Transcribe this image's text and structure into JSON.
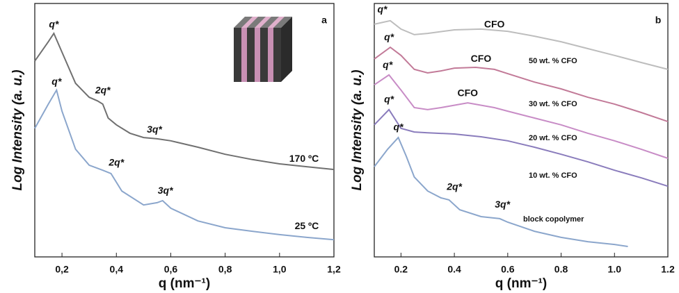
{
  "chart_data": [
    {
      "type": "line",
      "panel": "a",
      "ylabel": "Log Intensity (a. u.)",
      "xlabel": "q (nm⁻¹)",
      "xlim": [
        0.1,
        1.2
      ],
      "ylim": [
        0,
        100
      ],
      "xticks": [
        {
          "value": 0.2,
          "label": "0,2"
        },
        {
          "value": 0.4,
          "label": "0,4"
        },
        {
          "value": 0.6,
          "label": "0,6"
        },
        {
          "value": 0.8,
          "label": "0,8"
        },
        {
          "value": 1.0,
          "label": "1,0"
        },
        {
          "value": 1.2,
          "label": "1,2"
        }
      ],
      "series": [
        {
          "color": "#707070",
          "x": [
            0.1,
            0.15,
            0.17,
            0.2,
            0.25,
            0.3,
            0.33,
            0.35,
            0.37,
            0.4,
            0.45,
            0.5,
            0.55,
            0.6,
            0.7,
            0.8,
            0.9,
            1.0,
            1.1,
            1.2
          ],
          "values": [
            77.3,
            84.9,
            88.2,
            80.8,
            68.5,
            63.0,
            61.6,
            60.3,
            54.8,
            52.1,
            48.8,
            47.1,
            46.6,
            45.8,
            43.3,
            40.5,
            38.4,
            36.7,
            35.6,
            34.5
          ]
        },
        {
          "color": "#8ba6cc",
          "x": [
            0.1,
            0.15,
            0.18,
            0.2,
            0.25,
            0.3,
            0.35,
            0.38,
            0.42,
            0.5,
            0.55,
            0.57,
            0.6,
            0.7,
            0.8,
            0.9,
            1.0,
            1.1,
            1.2
          ],
          "values": [
            50.7,
            60.3,
            65.8,
            57.5,
            42.5,
            36.2,
            34.2,
            32.9,
            26.0,
            20.5,
            21.4,
            22.2,
            19.2,
            14.2,
            11.5,
            10.1,
            8.8,
            7.7,
            6.8
          ]
        }
      ],
      "annotations": [
        {
          "text": "q*",
          "x": 0.17,
          "y": 91.5
        },
        {
          "text": "2q*",
          "x": 0.35,
          "y": 65.5
        },
        {
          "text": "3q*",
          "x": 0.54,
          "y": 50
        },
        {
          "text": "q*",
          "x": 0.18,
          "y": 69
        },
        {
          "text": "2q*",
          "x": 0.4,
          "y": 37
        },
        {
          "text": "3q*",
          "x": 0.58,
          "y": 26
        },
        {
          "text": "170 ºC",
          "x": 1.09,
          "y": 38.5,
          "color": "#333333"
        },
        {
          "text": "25 ºC",
          "x": 1.1,
          "y": 12,
          "color": "#8ba6cc"
        }
      ]
    },
    {
      "type": "line",
      "panel": "b",
      "ylabel": "Log Intensity (a. u.)",
      "xlabel": "q  (nm⁻¹)",
      "xlim": [
        0.1,
        1.2
      ],
      "ylim": [
        0,
        100
      ],
      "xticks": [
        0.2,
        0.4,
        0.6,
        0.8,
        {
          "value": 1.0,
          "label": "1.0"
        },
        1.2
      ],
      "series": [
        {
          "name": "50 wt. % CFO",
          "color": "#bdbdbd",
          "x": [
            0.1,
            0.16,
            0.2,
            0.25,
            0.3,
            0.4,
            0.5,
            0.6,
            0.7,
            0.8,
            0.9,
            1.0,
            1.1,
            1.2
          ],
          "values": [
            91.8,
            93.2,
            89.9,
            87.7,
            88.2,
            89.6,
            89.9,
            89.0,
            87.1,
            84.9,
            82.2,
            79.5,
            76.7,
            74.0
          ]
        },
        {
          "name": "30 wt. % CFO",
          "color": "#c27a98",
          "x": [
            0.1,
            0.16,
            0.2,
            0.25,
            0.3,
            0.35,
            0.4,
            0.48,
            0.55,
            0.6,
            0.7,
            0.8,
            0.9,
            1.0,
            1.1,
            1.2
          ],
          "values": [
            78.1,
            82.7,
            79.5,
            74.0,
            72.6,
            73.4,
            74.5,
            74.8,
            74.0,
            72.3,
            69.0,
            66.3,
            63.0,
            60.3,
            57.0,
            53.4
          ]
        },
        {
          "name": "20 wt. % CFO",
          "color": "#c88cc6",
          "x": [
            0.1,
            0.155,
            0.2,
            0.25,
            0.3,
            0.35,
            0.45,
            0.55,
            0.6,
            0.7,
            0.8,
            0.9,
            1.0,
            1.1,
            1.2
          ],
          "values": [
            67.9,
            71.8,
            65.8,
            58.9,
            58.1,
            58.9,
            60.8,
            58.9,
            57.5,
            54.8,
            52.1,
            48.8,
            45.8,
            42.5,
            38.9
          ]
        },
        {
          "name": "10 wt. % CFO",
          "color": "#8a7cbc",
          "x": [
            0.1,
            0.155,
            0.2,
            0.25,
            0.3,
            0.4,
            0.5,
            0.6,
            0.7,
            0.8,
            0.9,
            1.0,
            1.1,
            1.2
          ],
          "values": [
            52.1,
            58.1,
            50.7,
            49.3,
            49.0,
            48.5,
            47.4,
            45.8,
            43.3,
            40.5,
            37.5,
            34.2,
            31.2,
            27.9
          ]
        },
        {
          "name": "block copolymer",
          "color": "#8ba6cc",
          "x": [
            0.1,
            0.15,
            0.19,
            0.22,
            0.25,
            0.3,
            0.35,
            0.38,
            0.42,
            0.5,
            0.57,
            0.6,
            0.7,
            0.8,
            0.9,
            1.0,
            1.05
          ],
          "values": [
            35.6,
            42.5,
            47.1,
            39.7,
            31.5,
            26.0,
            23.3,
            22.5,
            18.6,
            15.9,
            15.1,
            13.7,
            10.1,
            7.7,
            6.0,
            4.9,
            4.1
          ]
        }
      ],
      "annotations": [
        {
          "text": "q*",
          "x": 0.13,
          "y": 97.5
        },
        {
          "text": "q*",
          "x": 0.155,
          "y": 86.5
        },
        {
          "text": "q*",
          "x": 0.15,
          "y": 75.5
        },
        {
          "text": "q*",
          "x": 0.155,
          "y": 62
        },
        {
          "text": "q*",
          "x": 0.19,
          "y": 51
        },
        {
          "text": "CFO",
          "x": 0.55,
          "y": 91.5
        },
        {
          "text": "CFO",
          "x": 0.5,
          "y": 78
        },
        {
          "text": "CFO",
          "x": 0.45,
          "y": 64.5
        },
        {
          "text": "2q*",
          "x": 0.4,
          "y": 27.5
        },
        {
          "text": "3q*",
          "x": 0.58,
          "y": 20.5
        }
      ]
    }
  ]
}
